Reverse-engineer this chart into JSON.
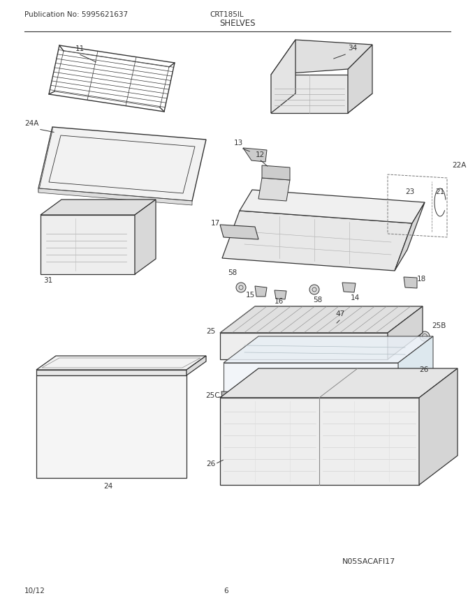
{
  "title": "SHELVES",
  "publication": "Publication No: 5995621637",
  "model": "CRT185IL",
  "date": "10/12",
  "page": "6",
  "footer_code": "N05SACAFI17",
  "bg_color": "#ffffff",
  "line_color": "#333333",
  "fig_width": 6.8,
  "fig_height": 8.8,
  "dpi": 100
}
